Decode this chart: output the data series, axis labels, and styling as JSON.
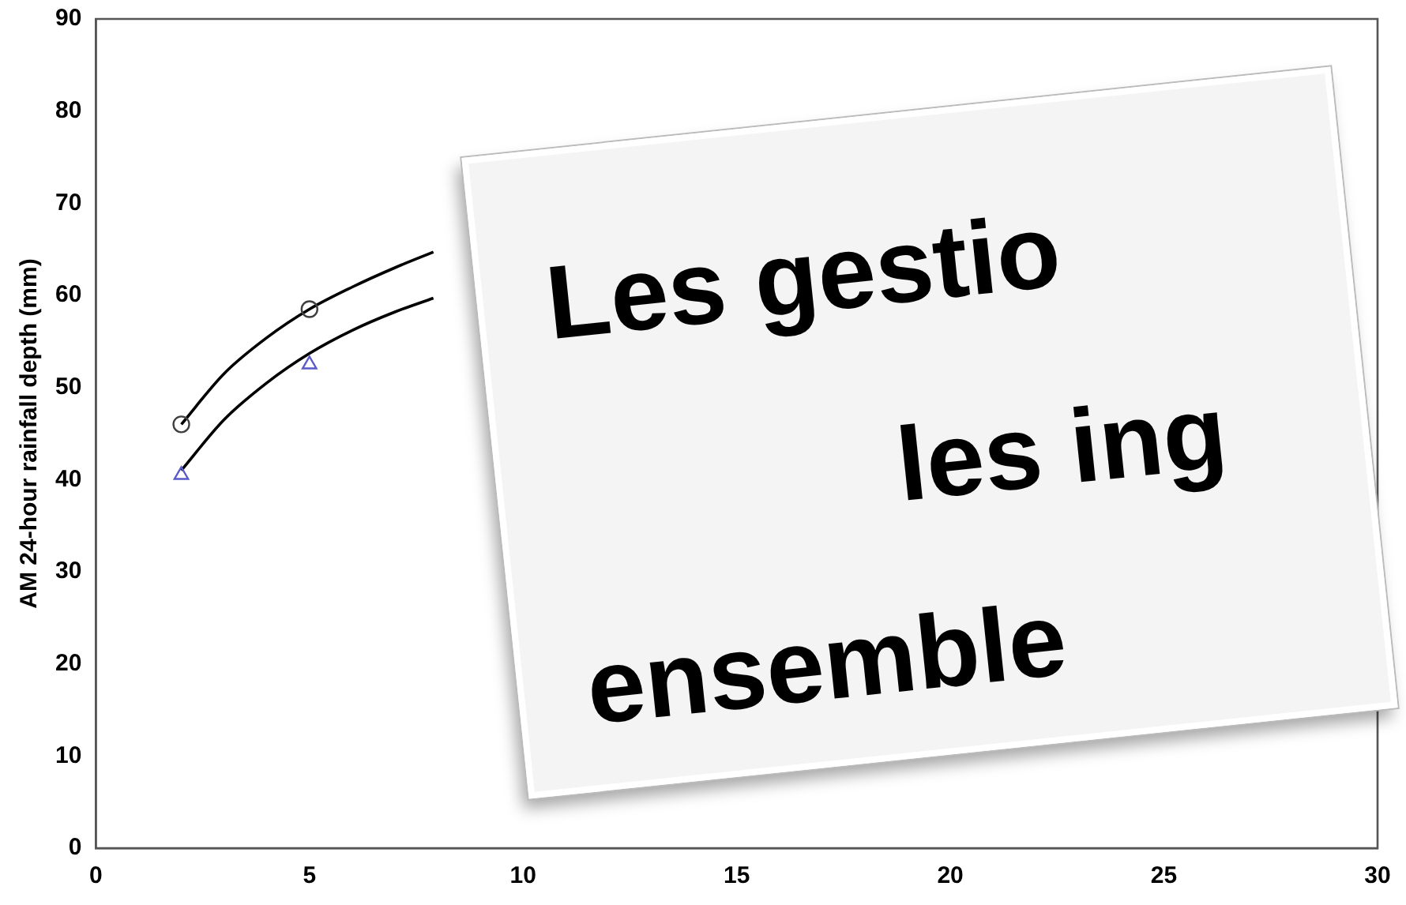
{
  "chart_data": {
    "type": "scatter",
    "ylabel": "AM 24-hour rainfall depth (mm)",
    "annotations": [
      "Les gestio",
      "les ing",
      "ensemble"
    ],
    "xlim": [
      0,
      30
    ],
    "xticks": [
      0,
      5,
      10,
      15,
      20,
      25,
      30
    ],
    "ylim": [
      0,
      90
    ],
    "yticks": [
      0,
      10,
      20,
      30,
      40,
      50,
      60,
      70,
      80,
      90
    ],
    "series": [
      {
        "type": "scatter",
        "color": "#404040",
        "marker": "circle",
        "x": [
          2,
          5
        ],
        "values": [
          46,
          58.5
        ]
      },
      {
        "type": "scatter",
        "color": "#5a5ac8",
        "marker": "triangle",
        "x": [
          2,
          5
        ],
        "values": [
          40.5,
          52.5
        ]
      },
      {
        "type": "line",
        "color": "#000000",
        "x": [
          2,
          3,
          4,
          5,
          6,
          7,
          7.9
        ],
        "values": [
          46,
          51.5,
          55.4,
          58.5,
          60.9,
          63,
          64.7
        ]
      },
      {
        "type": "line",
        "color": "#000000",
        "x": [
          2,
          3,
          4,
          5,
          6,
          7,
          7.9
        ],
        "values": [
          41,
          46.5,
          50.5,
          53.7,
          56.2,
          58.2,
          59.7
        ]
      }
    ]
  }
}
